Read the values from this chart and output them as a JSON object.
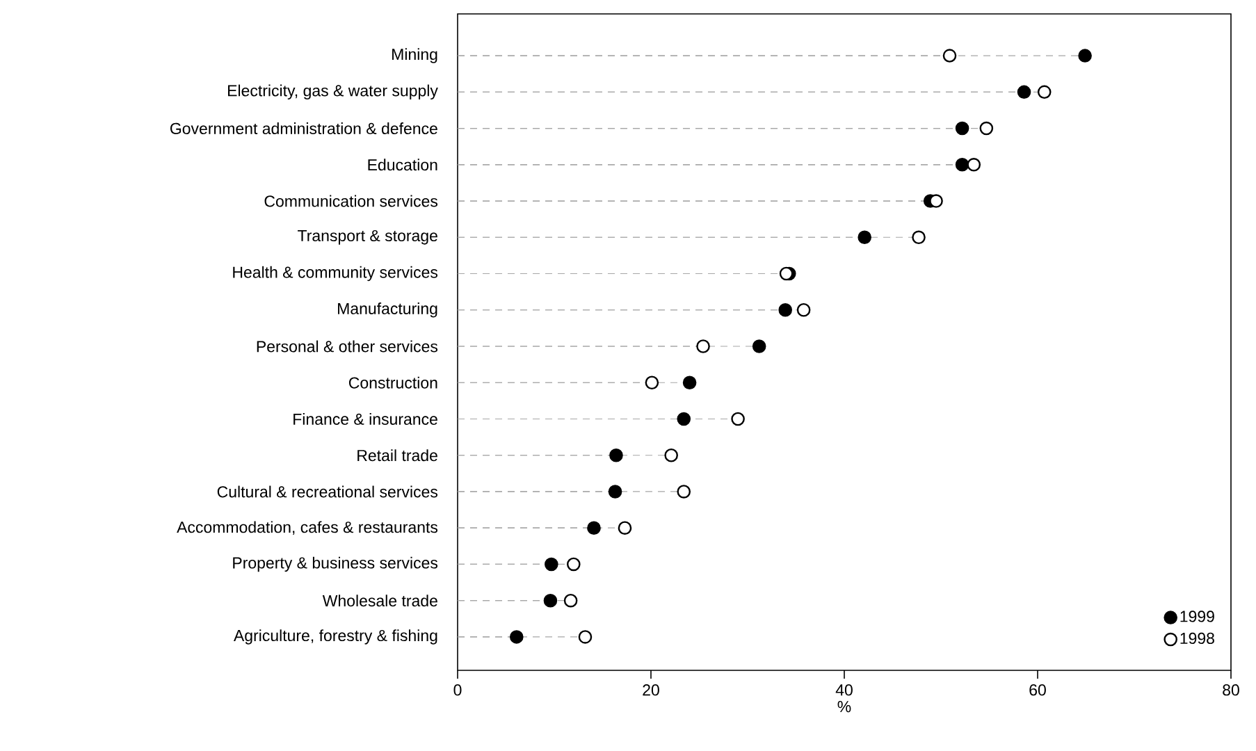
{
  "chart_data": {
    "type": "lollipop",
    "orientation": "horizontal",
    "xlabel": "%",
    "categories": [
      "Mining",
      "Electricity, gas & water supply",
      "Government administration & defence",
      "Education",
      "Communication services",
      "Transport & storage",
      "Health & community services",
      "Manufacturing",
      "Personal & other services",
      "Construction",
      "Finance & insurance",
      "Retail trade",
      "Cultural & recreational services",
      "Accommodation, cafes & restaurants",
      "Property & business services",
      "Wholesale trade",
      "Agriculture, forestry & fishing"
    ],
    "series": [
      {
        "name": "1999",
        "color": "#000000",
        "values": [
          64.9,
          58.6,
          52.2,
          52.2,
          48.9,
          42.1,
          34.3,
          33.9,
          31.2,
          24.0,
          23.4,
          16.4,
          16.3,
          14.1,
          9.7,
          9.6,
          6.1
        ]
      },
      {
        "name": "1998",
        "color": "#ffffff",
        "values": [
          50.9,
          60.7,
          54.7,
          53.4,
          49.5,
          47.7,
          34.0,
          35.8,
          25.4,
          20.1,
          29.0,
          22.1,
          23.4,
          17.3,
          12.0,
          11.7,
          13.2
        ]
      }
    ],
    "xlim": [
      0,
      80
    ],
    "xticks": [
      0,
      20,
      40,
      60,
      80
    ],
    "legend": "bottom right",
    "line_style": "dashed",
    "grid": false
  }
}
